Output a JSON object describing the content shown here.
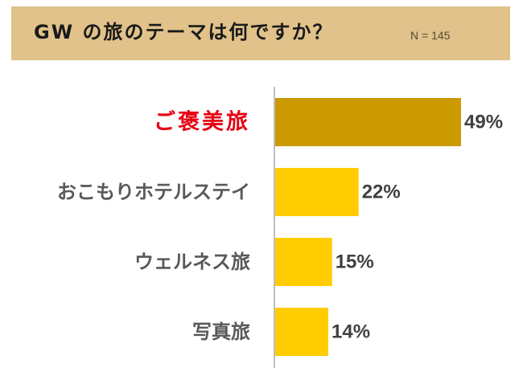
{
  "header": {
    "title": "GW の旅のテーマは何ですか？",
    "sample_size": "N = 145"
  },
  "colors": {
    "title_band": "#e0c28a",
    "bar_highlight": "#cc9900",
    "bar_default": "#ffcc00",
    "label_highlight": "#e60012",
    "label_default": "#595959",
    "value_text": "#404040",
    "axis": "#bfbfbf"
  },
  "chart_data": {
    "type": "bar",
    "orientation": "horizontal",
    "categories": [
      "ご褒美旅",
      "おこもりホテルステイ",
      "ウェルネス旅",
      "写真旅"
    ],
    "values": [
      49,
      22,
      15,
      14
    ],
    "value_labels": [
      "49%",
      "22%",
      "15%",
      "14%"
    ],
    "highlight_index": 0,
    "xlim": [
      0,
      100
    ],
    "grid": false,
    "legend": "none"
  }
}
